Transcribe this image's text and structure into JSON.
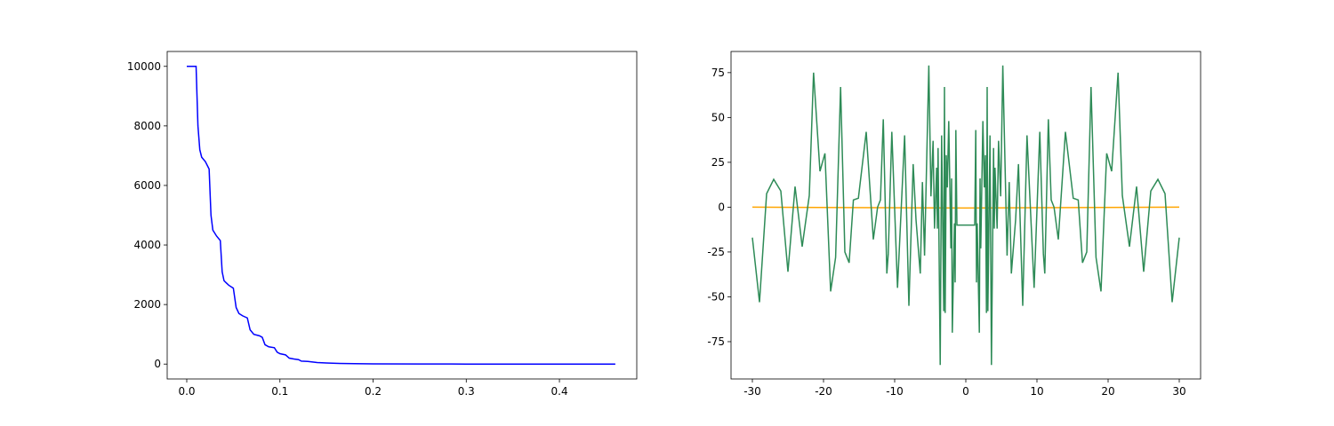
{
  "chart_data": [
    {
      "type": "line",
      "xlim": [
        -0.021,
        0.483
      ],
      "ylim": [
        -500,
        10500
      ],
      "xticks": [
        {
          "value": 0,
          "label": "0.0"
        },
        0.1,
        0.2,
        0.3,
        0.4
      ],
      "yticks": [
        0,
        2000,
        4000,
        6000,
        8000,
        10000
      ],
      "series": [
        {
          "color": "#0000ff",
          "x": [
            0,
            0.01,
            0.012,
            0.014,
            0.016,
            0.02,
            0.024,
            0.026,
            0.028,
            0.032,
            0.036,
            0.038,
            0.04,
            0.045,
            0.05,
            0.053,
            0.056,
            0.06,
            0.065,
            0.068,
            0.072,
            0.078,
            0.081,
            0.084,
            0.088,
            0.094,
            0.097,
            0.1,
            0.106,
            0.11,
            0.115,
            0.12,
            0.123,
            0.13,
            0.135,
            0.14,
            0.15,
            0.16,
            0.18,
            0.2,
            0.25,
            0.3,
            0.35,
            0.4,
            0.46
          ],
          "values": [
            10000,
            10000,
            8000,
            7200,
            6950,
            6800,
            6550,
            5000,
            4500,
            4300,
            4150,
            3100,
            2800,
            2650,
            2550,
            1900,
            1700,
            1620,
            1550,
            1150,
            1000,
            950,
            900,
            650,
            580,
            550,
            400,
            350,
            310,
            200,
            170,
            150,
            100,
            90,
            70,
            50,
            35,
            25,
            15,
            8,
            3,
            1,
            0,
            0,
            0
          ]
        }
      ]
    },
    {
      "type": "line",
      "xlim": [
        -33,
        33
      ],
      "ylim": [
        -95.8,
        86.8
      ],
      "xticks": [
        -30,
        -20,
        -10,
        0,
        10,
        20,
        30
      ],
      "yticks": [
        -75,
        -50,
        -25,
        0,
        25,
        50,
        75
      ],
      "series": [
        {
          "color": "#ffa500",
          "x": [
            -30,
            0,
            30
          ],
          "values": [
            0,
            -0.5,
            0
          ]
        },
        {
          "color": "#2e8b57",
          "x": [
            -30,
            -29,
            -28,
            -27,
            -26,
            -25,
            -24,
            -23,
            -22,
            -21.4,
            -20.5,
            -19.8,
            -19,
            -18.3,
            -17.6,
            -17,
            -16.4,
            -15.8,
            -15.1,
            -14,
            -13,
            -12.4,
            -12,
            -11.6,
            -11.1,
            -10.9,
            -10.4,
            -9.6,
            -8.6,
            -8,
            -7.4,
            -7,
            -6.4,
            -6.1,
            -5.8,
            -5.2,
            -4.9,
            -4.6,
            -4.4,
            -4.1,
            -4,
            -3.9,
            -3.6,
            -3.4,
            -3.1,
            -3,
            -2.9,
            -2.75,
            -2.6,
            -2.4,
            -2.1,
            -2,
            -1.9,
            -1.6,
            -1.5,
            -1.4,
            -1.25,
            1.25,
            1.4,
            1.5,
            1.6,
            1.9,
            2,
            2.1,
            2.4,
            2.6,
            2.75,
            2.9,
            3,
            3.1,
            3.4,
            3.6,
            3.9,
            4,
            4.1,
            4.4,
            4.6,
            4.9,
            5.2,
            5.8,
            6.1,
            6.4,
            7,
            7.4,
            8,
            8.6,
            9.6,
            10.4,
            10.9,
            11.1,
            11.6,
            12,
            12.4,
            13,
            14,
            15.1,
            15.8,
            16.4,
            17,
            17.6,
            18.3,
            19,
            19.8,
            20.5,
            21.4,
            22,
            23,
            24,
            25,
            26,
            27,
            28,
            29,
            30
          ],
          "values": [
            -17,
            -53,
            7.5,
            15.5,
            9,
            -36,
            11.5,
            -22,
            6.5,
            75,
            20,
            30,
            -47,
            -28,
            67,
            -25,
            -31,
            4,
            5,
            42,
            -18,
            0,
            4,
            49,
            -37,
            -26,
            42,
            -45,
            40,
            -55,
            24,
            -7,
            -37,
            14,
            -27,
            79,
            6,
            37,
            -12,
            22,
            -12,
            33,
            -88,
            40,
            -58,
            67,
            -59,
            29,
            11,
            48,
            -23,
            16,
            -70,
            -9,
            -42,
            43,
            -10,
            -10,
            43,
            -42,
            -9,
            -70,
            16,
            -23,
            48,
            11,
            29,
            -59,
            67,
            -58,
            40,
            -88,
            33,
            -12,
            22,
            -12,
            37,
            6,
            79,
            -27,
            14,
            -37,
            -7,
            24,
            -55,
            40,
            -45,
            42,
            -26,
            -37,
            49,
            4,
            0,
            -18,
            42,
            5,
            4,
            -31,
            -25,
            67,
            -28,
            -47,
            30,
            20,
            75,
            6.5,
            -22,
            11.5,
            -36,
            9,
            15.5,
            7.5,
            -53,
            -17
          ]
        }
      ]
    }
  ]
}
